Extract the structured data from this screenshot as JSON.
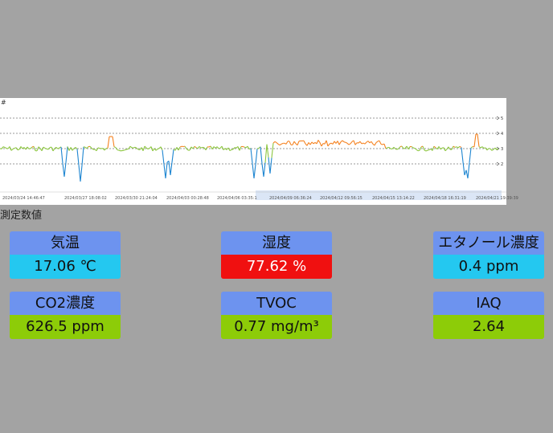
{
  "chart": {
    "corner_label": "#",
    "y_ticks": [
      "5",
      "4",
      "3",
      "2"
    ],
    "x_ticks": [
      "2024/03/24 14:46:47",
      "2024/03/27 18:08:02",
      "2024/03/30 21:24:04",
      "2024/04/03 00:28:48",
      "2024/04/06 03:35:1",
      "2024/04/09 06:36:24",
      "2024/04/12 09:56:15",
      "2024/04/15 13:14:22",
      "2024/04/18 16:31:19",
      "2024/04/21 19:39:39"
    ],
    "colors": {
      "orange": "#f58220",
      "green": "#8cc63f",
      "blue": "#1f86d1"
    }
  },
  "section_title": "測定数値",
  "cards": [
    {
      "label": "気温",
      "value": "17.06 ℃",
      "value_color": "#24c8f0"
    },
    {
      "label": "湿度",
      "value": "77.62 %",
      "value_color": "#f01010"
    },
    {
      "label": "エタノール濃度",
      "value": "0.4 ppm",
      "value_color": "#24c8f0"
    },
    {
      "label": "CO2濃度",
      "value": "626.5 ppm",
      "value_color": "#8dcc08"
    },
    {
      "label": "TVOC",
      "value": "0.77 mg/m³",
      "value_color": "#8dcc08"
    },
    {
      "label": "IAQ",
      "value": "2.64",
      "value_color": "#8dcc08"
    }
  ]
}
